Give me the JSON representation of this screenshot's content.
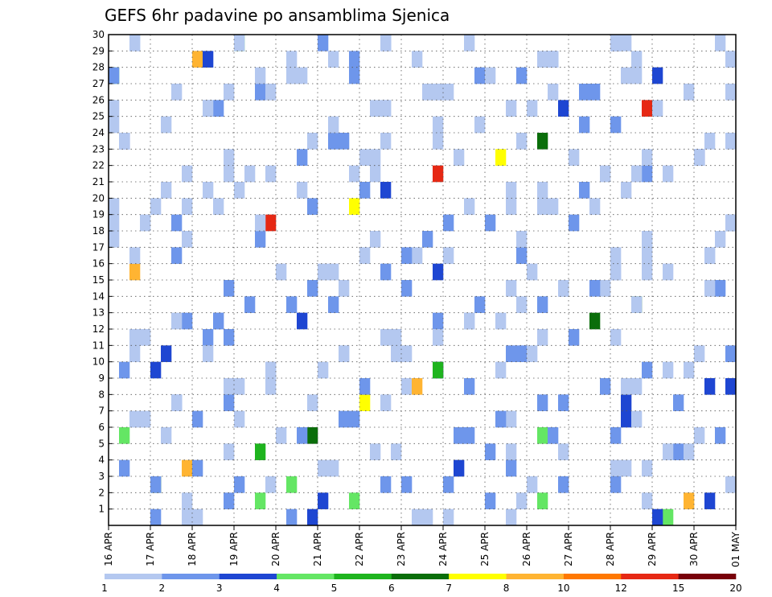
{
  "chart_data": {
    "type": "heatmap",
    "title": "GEFS 6hr padavine po ansamblima Sjenica",
    "xlabel": "",
    "ylabel": "",
    "x_tick_labels": [
      "16 APR",
      "17 APR",
      "18 APR",
      "19 APR",
      "20 APR",
      "21 APR",
      "22 APR",
      "23 APR",
      "24 APR",
      "25 APR",
      "26 APR",
      "27 APR",
      "28 APR",
      "29 APR",
      "30 APR",
      "01 MAY"
    ],
    "y_tick_labels": [
      "1",
      "2",
      "3",
      "4",
      "5",
      "6",
      "7",
      "8",
      "9",
      "10",
      "11",
      "12",
      "13",
      "14",
      "15",
      "16",
      "17",
      "18",
      "19",
      "20",
      "21",
      "22",
      "23",
      "24",
      "25",
      "26",
      "27",
      "28",
      "29",
      "30"
    ],
    "grid": true,
    "colorbar": {
      "labels": [
        "1",
        "2",
        "3",
        "4",
        "5",
        "6",
        "7",
        "8",
        "10",
        "12",
        "15",
        "20"
      ],
      "colors": [
        "#b4c8f0",
        "#6e96eb",
        "#1e46d2",
        "#64e664",
        "#1eb41e",
        "#0a6e0a",
        "#ffff00",
        "#ffb432",
        "#ff7800",
        "#e62814",
        "#78000a"
      ]
    },
    "cells": [
      [
        1,
        1
      ],
      [
        2,
        0
      ],
      [
        3,
        1
      ],
      [
        6,
        0
      ],
      [
        7,
        1
      ],
      [
        9,
        0
      ],
      [
        10,
        2
      ],
      [
        11,
        1
      ],
      [
        12,
        0
      ],
      [
        15,
        0
      ],
      [
        16,
        0
      ],
      [
        17,
        0
      ],
      [
        19,
        0
      ],
      [
        21,
        0
      ],
      [
        22,
        0
      ],
      [
        23,
        0
      ],
      [
        24,
        1
      ],
      [
        26,
        0
      ],
      [
        27,
        0
      ],
      [
        28,
        1
      ],
      [
        29,
        1
      ],
      [
        30,
        2
      ],
      [
        1,
        3
      ],
      [
        2,
        7
      ],
      [
        3,
        5
      ],
      [
        4,
        7
      ],
      [
        5,
        4
      ],
      [
        6,
        5
      ],
      [
        8,
        6
      ],
      [
        9,
        7
      ],
      [
        10,
        4
      ],
      [
        11,
        1
      ],
      [
        12,
        1
      ],
      [
        13,
        5
      ],
      [
        14,
        5
      ],
      [
        15,
        1
      ],
      [
        16,
        7
      ],
      [
        17,
        1
      ],
      [
        18,
        1
      ],
      [
        19,
        9
      ],
      [
        20,
        6
      ],
      [
        21,
        2
      ],
      [
        22,
        9
      ],
      [
        23,
        6
      ],
      [
        24,
        5
      ],
      [
        25,
        1
      ],
      [
        26,
        9
      ],
      [
        27,
        0
      ],
      [
        28,
        3
      ],
      [
        29,
        7
      ],
      [
        30,
        3
      ],
      [
        1,
        2
      ],
      [
        2,
        3
      ],
      [
        3,
        1
      ],
      [
        4,
        0
      ],
      [
        5,
        0
      ],
      [
        6,
        3
      ],
      [
        8,
        2
      ],
      [
        9,
        0
      ],
      [
        10,
        0
      ],
      [
        11,
        0
      ],
      [
        12,
        1
      ],
      [
        13,
        0
      ],
      [
        15,
        0
      ],
      [
        16,
        0
      ],
      [
        17,
        0
      ],
      [
        20,
        0
      ],
      [
        21,
        0
      ],
      [
        23,
        0
      ],
      [
        25,
        1
      ],
      [
        26,
        0
      ],
      [
        27,
        0
      ],
      [
        28,
        1
      ],
      [
        29,
        2
      ],
      [
        30,
        0
      ],
      [
        1,
        1
      ],
      [
        2,
        2
      ],
      [
        3,
        1
      ],
      [
        4,
        2
      ],
      [
        5,
        1
      ],
      [
        6,
        1
      ],
      [
        7,
        2
      ],
      [
        8,
        1
      ],
      [
        9,
        2
      ],
      [
        10,
        2
      ],
      [
        11,
        0
      ],
      [
        12,
        1
      ],
      [
        13,
        2
      ],
      [
        14,
        1
      ],
      [
        15,
        1
      ],
      [
        16,
        2
      ],
      [
        17,
        1
      ],
      [
        19,
        1
      ],
      [
        20,
        0
      ],
      [
        22,
        1
      ],
      [
        23,
        2
      ],
      [
        24,
        2
      ],
      [
        26,
        1
      ],
      [
        27,
        1
      ],
      [
        28,
        0
      ],
      [
        29,
        1
      ],
      [
        30,
        1
      ],
      [
        1,
        0
      ],
      [
        2,
        1
      ],
      [
        3,
        1
      ],
      [
        4,
        0
      ],
      [
        5,
        1
      ],
      [
        6,
        1
      ],
      [
        7,
        0
      ],
      [
        8,
        1
      ],
      [
        9,
        0
      ],
      [
        10,
        0
      ],
      [
        11,
        0
      ],
      [
        12,
        0
      ],
      [
        13,
        1
      ],
      [
        14,
        1
      ],
      [
        15,
        1
      ],
      [
        16,
        0
      ],
      [
        18,
        0
      ],
      [
        19,
        1
      ],
      [
        20,
        0
      ],
      [
        21,
        0
      ],
      [
        22,
        0
      ],
      [
        23,
        1
      ],
      [
        24,
        1
      ],
      [
        26,
        0
      ],
      [
        27,
        0
      ],
      [
        28,
        0
      ],
      [
        29,
        0
      ],
      [
        30,
        0
      ],
      [
        2,
        0
      ],
      [
        3,
        0
      ],
      [
        4,
        1
      ],
      [
        6,
        0
      ],
      [
        7,
        0
      ],
      [
        8,
        0
      ],
      [
        9,
        1
      ],
      [
        11,
        0
      ],
      [
        13,
        0
      ],
      [
        15,
        0
      ],
      [
        16,
        0
      ],
      [
        17,
        0
      ],
      [
        18,
        0
      ],
      [
        19,
        0
      ],
      [
        20,
        0
      ],
      [
        22,
        0
      ],
      [
        23,
        0
      ],
      [
        24,
        0
      ],
      [
        25,
        0
      ],
      [
        26,
        0
      ],
      [
        27,
        0
      ],
      [
        28,
        1
      ],
      [
        29,
        0
      ],
      [
        30,
        0
      ],
      [
        1,
        2
      ],
      [
        2,
        2
      ],
      [
        3,
        1
      ],
      [
        4,
        1
      ],
      [
        5,
        0
      ],
      [
        6,
        1
      ],
      [
        7,
        1
      ],
      [
        8,
        0
      ],
      [
        9,
        1
      ],
      [
        10,
        0
      ],
      [
        11,
        0
      ],
      [
        12,
        0
      ],
      [
        14,
        0
      ],
      [
        15,
        0
      ],
      [
        17,
        0
      ],
      [
        18,
        0
      ],
      [
        19,
        0
      ],
      [
        20,
        1
      ],
      [
        21,
        1
      ],
      [
        22,
        0
      ],
      [
        23,
        0
      ],
      [
        24,
        0
      ],
      [
        26,
        0
      ],
      [
        27,
        1
      ],
      [
        28,
        0
      ],
      [
        29,
        0
      ],
      [
        30,
        0
      ],
      [
        1,
        0
      ],
      [
        2,
        1
      ],
      [
        3,
        0
      ],
      [
        4,
        0
      ],
      [
        5,
        0
      ],
      [
        6,
        1
      ],
      [
        7,
        0
      ],
      [
        8,
        1
      ],
      [
        9,
        1
      ],
      [
        10,
        1
      ],
      [
        11,
        1
      ],
      [
        12,
        0
      ],
      [
        13,
        1
      ],
      [
        14,
        1
      ],
      [
        15,
        1
      ],
      [
        16,
        0
      ],
      [
        17,
        1
      ],
      [
        18,
        1
      ],
      [
        19,
        1
      ],
      [
        20,
        0
      ],
      [
        21,
        1
      ],
      [
        22,
        0
      ],
      [
        23,
        0
      ],
      [
        24,
        0
      ],
      [
        25,
        0
      ],
      [
        26,
        1
      ],
      [
        27,
        0
      ],
      [
        28,
        1
      ],
      [
        29,
        0
      ],
      [
        30,
        0
      ],
      [
        1,
        0
      ],
      [
        2,
        3
      ],
      [
        3,
        1
      ],
      [
        4,
        0
      ],
      [
        5,
        0
      ],
      [
        6,
        3
      ],
      [
        7,
        1
      ],
      [
        8,
        1
      ],
      [
        9,
        0
      ],
      [
        10,
        0
      ],
      [
        11,
        0
      ],
      [
        12,
        0
      ],
      [
        13,
        0
      ],
      [
        14,
        1
      ],
      [
        15,
        1
      ],
      [
        16,
        0
      ],
      [
        17,
        0
      ],
      [
        18,
        0
      ],
      [
        19,
        1
      ],
      [
        20,
        0
      ],
      [
        21,
        0
      ],
      [
        22,
        0
      ],
      [
        23,
        0
      ],
      [
        24,
        0
      ],
      [
        25,
        0
      ],
      [
        26,
        2
      ],
      [
        27,
        1
      ],
      [
        28,
        2
      ],
      [
        29,
        0
      ],
      [
        30,
        0
      ],
      [
        1,
        0
      ],
      [
        2,
        3
      ],
      [
        3,
        3
      ],
      [
        4,
        0
      ],
      [
        5,
        0
      ],
      [
        6,
        1
      ],
      [
        7,
        1
      ],
      [
        8,
        1
      ],
      [
        9,
        0
      ],
      [
        10,
        0
      ],
      [
        11,
        0
      ],
      [
        12,
        0
      ],
      [
        13,
        0
      ],
      [
        15,
        1
      ],
      [
        16,
        0
      ],
      [
        17,
        0
      ],
      [
        18,
        0
      ],
      [
        19,
        1
      ],
      [
        20,
        0
      ],
      [
        21,
        0
      ],
      [
        22,
        0
      ],
      [
        23,
        0
      ],
      [
        24,
        0
      ],
      [
        26,
        0
      ],
      [
        27,
        0
      ],
      [
        28,
        0
      ],
      [
        29,
        0
      ],
      [
        30,
        1
      ],
      [
        1,
        0
      ],
      [
        3,
        1
      ],
      [
        4,
        1
      ],
      [
        5,
        0
      ],
      [
        6,
        1
      ],
      [
        7,
        0
      ],
      [
        9,
        2
      ],
      [
        10,
        1
      ],
      [
        11,
        2
      ],
      [
        13,
        1
      ],
      [
        14,
        1
      ],
      [
        15,
        0
      ],
      [
        16,
        1
      ],
      [
        17,
        0
      ],
      [
        18,
        0
      ],
      [
        20,
        0
      ],
      [
        21,
        0
      ],
      [
        22,
        0
      ],
      [
        24,
        0
      ],
      [
        25,
        0
      ],
      [
        26,
        0
      ],
      [
        27,
        0
      ],
      [
        28,
        0
      ],
      [
        29,
        0
      ],
      [
        30,
        0
      ],
      [
        1,
        0
      ],
      [
        2,
        0
      ],
      [
        3,
        0
      ],
      [
        4,
        0
      ],
      [
        5,
        0
      ],
      [
        6,
        0
      ],
      [
        7,
        0
      ],
      [
        8,
        0
      ],
      [
        9,
        0
      ],
      [
        10,
        0
      ],
      [
        11,
        0
      ],
      [
        12,
        0
      ],
      [
        13,
        0
      ],
      [
        14,
        0
      ],
      [
        15,
        0
      ],
      [
        16,
        0
      ],
      [
        17,
        0
      ],
      [
        18,
        0
      ],
      [
        19,
        0
      ],
      [
        20,
        0
      ],
      [
        21,
        0
      ],
      [
        22,
        0
      ],
      [
        23,
        0
      ],
      [
        24,
        0
      ],
      [
        25,
        0
      ],
      [
        26,
        0
      ],
      [
        27,
        0
      ],
      [
        28,
        0
      ],
      [
        29,
        0
      ],
      [
        30,
        0
      ]
    ]
  }
}
